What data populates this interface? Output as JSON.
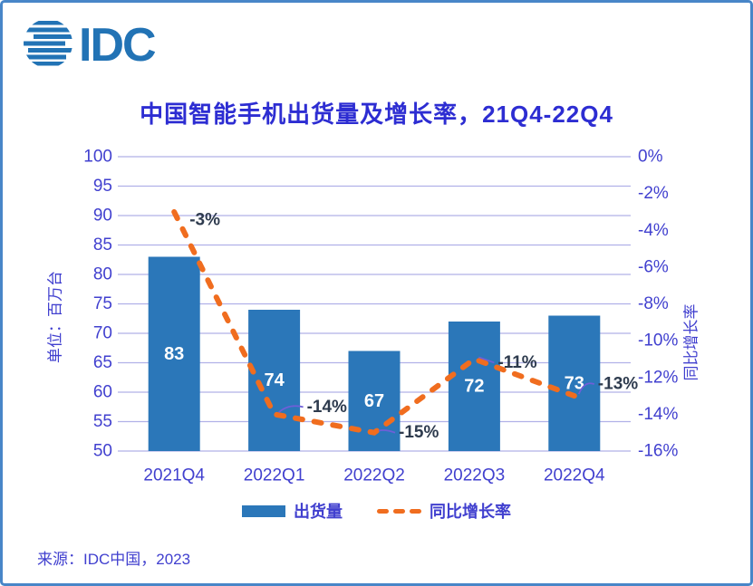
{
  "logo": {
    "text": "IDC"
  },
  "source_note": "来源：IDC中国，2023",
  "colors": {
    "bar": "#2b77b9",
    "line": "#f06d1f",
    "axis_text": "#4140cf",
    "title_text": "#2d2dd2",
    "data_label_dark": "#2e3b4e",
    "bar_label": "#ffffff",
    "gridline": "#b1b1e8",
    "frame_border": "#4886c8",
    "logo_blue": "#2273b5",
    "leader": "#6f5fd8"
  },
  "chart_data": {
    "type": "bar",
    "subtype": "bar+line combo, dual axis",
    "title": "中国智能手机出货量及增长率，21Q4-22Q4",
    "categories": [
      "2021Q4",
      "2022Q1",
      "2022Q2",
      "2022Q3",
      "2022Q4"
    ],
    "series": [
      {
        "name": "出货量",
        "type": "bar",
        "axis": "left",
        "values": [
          83,
          74,
          67,
          72,
          73
        ]
      },
      {
        "name": "同比增长率",
        "type": "line",
        "axis": "right",
        "values": [
          -3,
          -14,
          -15,
          -11,
          -13
        ],
        "point_labels": [
          "-3%",
          "-14%",
          "-15%",
          "-11%",
          "-13%"
        ]
      }
    ],
    "left_axis": {
      "title": "单位：百万台",
      "min": 50,
      "max": 100,
      "ticks": [
        100,
        95,
        90,
        85,
        80,
        75,
        70,
        65,
        60,
        55,
        50
      ]
    },
    "right_axis": {
      "title": "同比增长率",
      "min": -16,
      "max": 0,
      "ticks": [
        "0%",
        "-2%",
        "-4%",
        "-6%",
        "-8%",
        "-10%",
        "-12%",
        "-14%",
        "-16%"
      ]
    },
    "legend": [
      {
        "label": "出货量"
      },
      {
        "label": "同比增长率"
      }
    ],
    "grid": "horizontal gridlines on, legend bottom center"
  }
}
